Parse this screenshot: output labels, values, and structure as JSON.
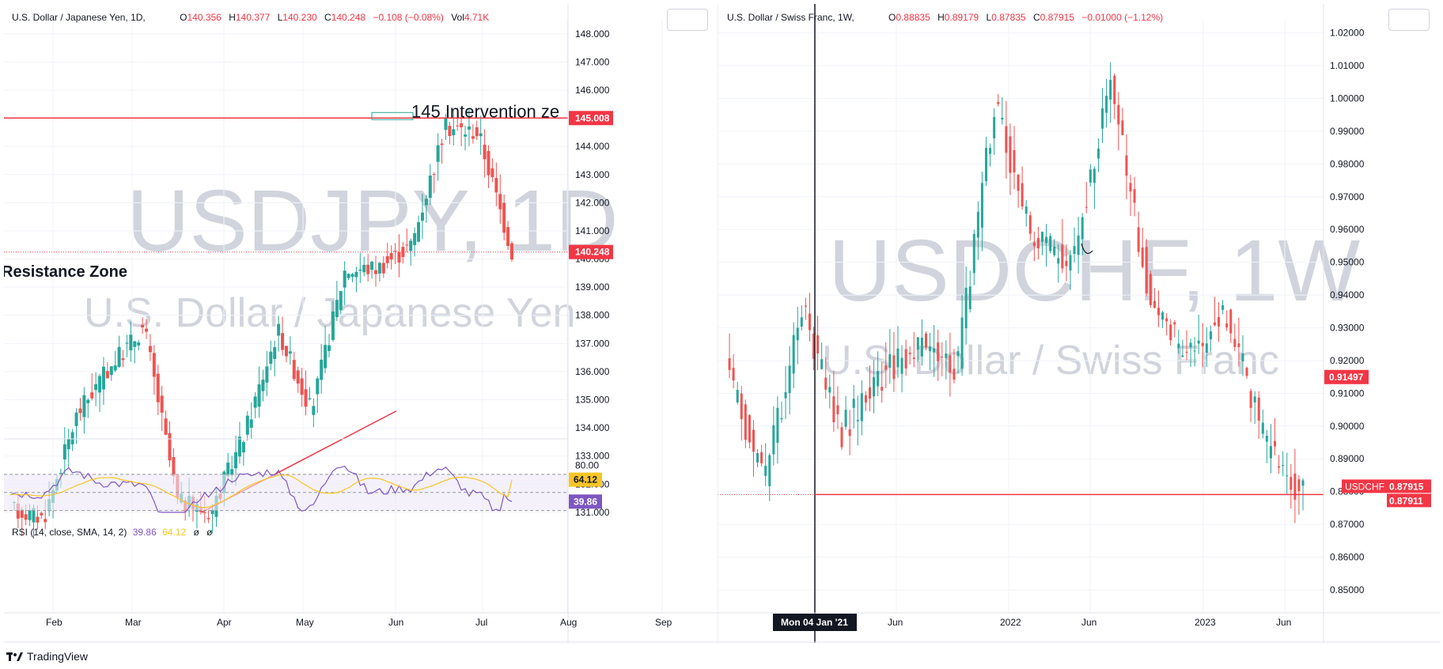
{
  "left": {
    "header": {
      "name": "U.S. Dollar / Japanese Yen, 1D,",
      "o_label": "O",
      "o": "140.356",
      "h_label": "H",
      "h": "140.377",
      "l_label": "L",
      "l": "140.230",
      "c_label": "C",
      "c": "140.248",
      "chg": "−0.108 (−0.08%)",
      "vol_label": "Vol",
      "vol": "4.71K"
    },
    "watermark": {
      "symbol": "USDJPY, 1D",
      "desc": "U.S. Dollar / Japanese Yen"
    },
    "annotations": {
      "intervention": "145 Intervention ze",
      "resistance": "Resistance Zone"
    },
    "price_ticks": [
      "148.000",
      "147.000",
      "146.000",
      "145.000",
      "144.000",
      "143.000",
      "142.000",
      "141.000",
      "140.000",
      "139.000",
      "138.000",
      "137.000",
      "136.000",
      "135.000",
      "134.000",
      "133.000",
      "132.000",
      "131.000"
    ],
    "price_labels": {
      "level": "145.008",
      "last": "140.248"
    },
    "time_ticks": [
      "Feb",
      "Mar",
      "Apr",
      "May",
      "Jun",
      "Jul",
      "Aug",
      "Sep"
    ],
    "rsi": {
      "header": "RSI (14, close, SMA, 14, 2)",
      "value": "39.86",
      "sma": "64.12",
      "extra1": "ø",
      "extra2": "ø",
      "ticks": [
        "80.00",
        "60.00"
      ],
      "rsi_label": "39.86",
      "sma_label": "64.12"
    },
    "colors": {
      "up": "#26a69a",
      "down": "#ef5350",
      "line": "#f23645",
      "rsi": "#7e57c2",
      "sma": "#f7c525",
      "band": "#ede7f6"
    }
  },
  "right": {
    "header": {
      "name": "U.S. Dollar / Swiss Franc, 1W,",
      "o_label": "O",
      "o": "0.88835",
      "h_label": "H",
      "h": "0.89179",
      "l_label": "L",
      "l": "0.87835",
      "c_label": "C",
      "c": "0.87915",
      "chg": "−0.01000 (−1.12%)"
    },
    "watermark": {
      "symbol": "USDCHF, 1W",
      "desc": "U.S. Dollar / Swiss Franc"
    },
    "price_ticks": [
      "1.02000",
      "1.01000",
      "1.00000",
      "0.99000",
      "0.98000",
      "0.97000",
      "0.96000",
      "0.95000",
      "0.94000",
      "0.93000",
      "0.92000",
      "0.91000",
      "0.90000",
      "0.89000",
      "0.88000",
      "0.87000",
      "0.86000",
      "0.85000"
    ],
    "price_labels": {
      "level": "0.91497",
      "symbol": "USDCHF",
      "last": "0.87915",
      "line": "0.87911"
    },
    "time_ticks": [
      "Jun",
      "2022",
      "Jun",
      "2023",
      "Jun"
    ],
    "crosshair_label": "Mon 04 Jan '21",
    "colors": {
      "up": "#26a69a",
      "down": "#ef5350",
      "line": "#f23645"
    }
  },
  "footer": {
    "brand": "TradingView"
  },
  "chart_data": [
    {
      "type": "candlestick",
      "title": "U.S. Dollar / Japanese Yen, 1D",
      "x_ticks": [
        "Feb",
        "Mar",
        "Apr",
        "May",
        "Jun",
        "Jul",
        "Aug",
        "Sep"
      ],
      "ylim": [
        130.8,
        148.5
      ],
      "last_close": 140.248,
      "horizontal_line": 145.008,
      "trendline": [
        [
          131.0,
          "start of April"
        ],
        [
          134.6,
          "late June"
        ]
      ],
      "anchors": [
        {
          "x": "Jan",
          "close": 131.1
        },
        {
          "x": "Feb",
          "close": 130.8
        },
        {
          "x": "Feb-mid",
          "close": 134.5
        },
        {
          "x": "Mar",
          "close": 136.2
        },
        {
          "x": "Mar-mid",
          "close": 137.6
        },
        {
          "x": "Mar-end",
          "close": 131.4
        },
        {
          "x": "Apr",
          "close": 131.0
        },
        {
          "x": "Apr-mid",
          "close": 133.8
        },
        {
          "x": "May",
          "close": 137.5
        },
        {
          "x": "May-mid",
          "close": 134.6
        },
        {
          "x": "May-end",
          "close": 139.6
        },
        {
          "x": "Jun",
          "close": 139.7
        },
        {
          "x": "Jun-mid",
          "close": 140.5
        },
        {
          "x": "Jun-end",
          "close": 144.7
        },
        {
          "x": "Jul",
          "close": 144.5
        },
        {
          "x": "Jul-mid",
          "close": 140.25
        }
      ],
      "rsi": {
        "period": 14,
        "value": 39.86,
        "sma": 64.12,
        "bands": [
          70,
          30
        ]
      }
    },
    {
      "type": "candlestick",
      "title": "U.S. Dollar / Swiss Franc, 1W",
      "x_ticks": [
        "Jun",
        "2022",
        "Jun",
        "2023",
        "Jun"
      ],
      "ylim": [
        0.843,
        1.024
      ],
      "last_close": 0.87915,
      "horizontal_line": 0.87911,
      "anchors": [
        {
          "x": "2020-10",
          "close": 0.918
        },
        {
          "x": "2021-01",
          "close": 0.883
        },
        {
          "x": "2021-04",
          "close": 0.935
        },
        {
          "x": "2021-06",
          "close": 0.898
        },
        {
          "x": "2021-08",
          "close": 0.915
        },
        {
          "x": "2021-11",
          "close": 0.925
        },
        {
          "x": "2022-03",
          "close": 0.918
        },
        {
          "x": "2022-05",
          "close": 0.999
        },
        {
          "x": "2022-06",
          "close": 0.956
        },
        {
          "x": "2022-08",
          "close": 0.95
        },
        {
          "x": "2022-10",
          "close": 1.005
        },
        {
          "x": "2022-11",
          "close": 0.94
        },
        {
          "x": "2023-01",
          "close": 0.92
        },
        {
          "x": "2023-03",
          "close": 0.935
        },
        {
          "x": "2023-05",
          "close": 0.895
        },
        {
          "x": "2023-07",
          "close": 0.879
        }
      ]
    }
  ]
}
